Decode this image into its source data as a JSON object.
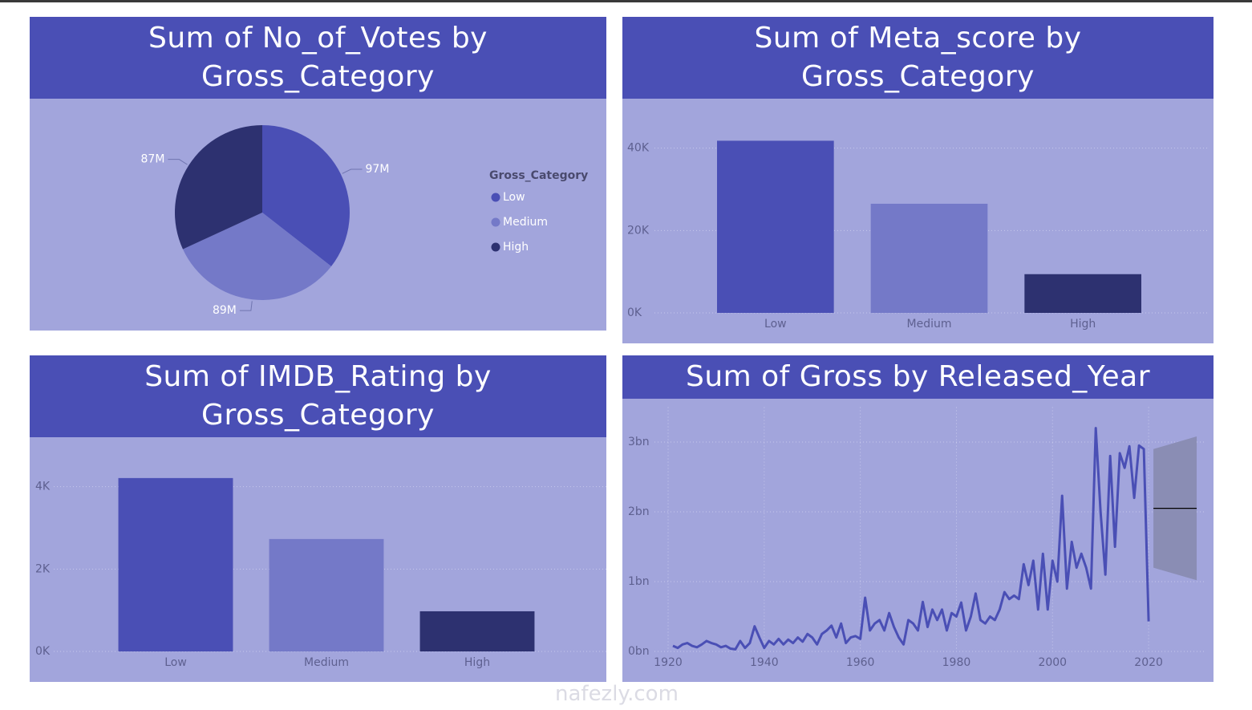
{
  "chart_data": [
    {
      "type": "pie",
      "title": "Sum of No_of_Votes by Gross_Category",
      "legend_title": "Gross_Category",
      "categories": [
        "Low",
        "Medium",
        "High"
      ],
      "values": [
        97,
        89,
        87
      ],
      "value_labels": [
        "97M",
        "89M",
        "87M"
      ],
      "colors": [
        "#4a4fb5",
        "#7479c8",
        "#2d3170"
      ]
    },
    {
      "type": "bar",
      "title": "Sum of Meta_score by Gross_Category",
      "categories": [
        "Low",
        "Medium",
        "High"
      ],
      "values": [
        41800,
        26500,
        9400
      ],
      "colors": [
        "#4a4fb5",
        "#7479c8",
        "#2d3170"
      ],
      "ylim": [
        0,
        45000
      ],
      "yticks": [
        {
          "value": 0,
          "label": "0K"
        },
        {
          "value": 20000,
          "label": "20K"
        },
        {
          "value": 40000,
          "label": "40K"
        }
      ],
      "grid": true
    },
    {
      "type": "bar",
      "title": "Sum of IMDB_Rating by Gross_Category",
      "categories": [
        "Low",
        "Medium",
        "High"
      ],
      "values": [
        4210,
        2730,
        975
      ],
      "colors": [
        "#4a4fb5",
        "#7479c8",
        "#2d3170"
      ],
      "ylim": [
        0,
        4500
      ],
      "yticks": [
        {
          "value": 0,
          "label": "0K"
        },
        {
          "value": 2000,
          "label": "2K"
        },
        {
          "value": 4000,
          "label": "4K"
        }
      ],
      "grid": true
    },
    {
      "type": "line",
      "title": "Sum of Gross by Released_Year",
      "color": "#4a4fb5",
      "x": [
        1921,
        1922,
        1923,
        1924,
        1925,
        1926,
        1927,
        1928,
        1929,
        1930,
        1931,
        1932,
        1933,
        1934,
        1935,
        1936,
        1937,
        1938,
        1939,
        1940,
        1941,
        1942,
        1943,
        1944,
        1945,
        1946,
        1947,
        1948,
        1949,
        1950,
        1951,
        1952,
        1953,
        1954,
        1955,
        1956,
        1957,
        1958,
        1959,
        1960,
        1961,
        1962,
        1963,
        1964,
        1965,
        1966,
        1967,
        1968,
        1969,
        1970,
        1971,
        1972,
        1973,
        1974,
        1975,
        1976,
        1977,
        1978,
        1979,
        1980,
        1981,
        1982,
        1983,
        1984,
        1985,
        1986,
        1987,
        1988,
        1989,
        1990,
        1991,
        1992,
        1993,
        1994,
        1995,
        1996,
        1997,
        1998,
        1999,
        2000,
        2001,
        2002,
        2003,
        2004,
        2005,
        2006,
        2007,
        2008,
        2009,
        2010,
        2011,
        2012,
        2013,
        2014,
        2015,
        2016,
        2017,
        2018,
        2019,
        2020
      ],
      "values": [
        0.08,
        0.05,
        0.1,
        0.12,
        0.08,
        0.06,
        0.1,
        0.15,
        0.12,
        0.1,
        0.06,
        0.08,
        0.04,
        0.03,
        0.15,
        0.05,
        0.12,
        0.36,
        0.2,
        0.05,
        0.15,
        0.1,
        0.18,
        0.1,
        0.17,
        0.12,
        0.2,
        0.14,
        0.25,
        0.2,
        0.1,
        0.25,
        0.3,
        0.37,
        0.2,
        0.4,
        0.12,
        0.2,
        0.22,
        0.18,
        0.77,
        0.3,
        0.4,
        0.45,
        0.3,
        0.55,
        0.35,
        0.2,
        0.1,
        0.45,
        0.4,
        0.3,
        0.71,
        0.35,
        0.6,
        0.45,
        0.6,
        0.3,
        0.55,
        0.5,
        0.7,
        0.3,
        0.5,
        0.83,
        0.45,
        0.4,
        0.5,
        0.45,
        0.6,
        0.85,
        0.75,
        0.8,
        0.75,
        1.25,
        0.95,
        1.3,
        0.6,
        1.4,
        0.6,
        1.3,
        1.0,
        2.23,
        0.9,
        1.57,
        1.2,
        1.4,
        1.2,
        0.9,
        3.2,
        2.0,
        1.1,
        2.8,
        1.5,
        2.84,
        2.63,
        2.94,
        2.2,
        2.95,
        2.9,
        0.43
      ],
      "xlim": [
        1920,
        2032
      ],
      "xticks": [
        1920,
        1940,
        1960,
        1980,
        2000,
        2020
      ],
      "ylim": [
        0,
        3.5
      ],
      "yticks": [
        {
          "value": 0,
          "label": "0bn"
        },
        {
          "value": 1,
          "label": "1bn"
        },
        {
          "value": 2,
          "label": "2bn"
        },
        {
          "value": 3,
          "label": "3bn"
        }
      ],
      "grid": true,
      "forecast": {
        "x": [
          2021,
          2030
        ],
        "values": [
          2.05,
          2.05
        ],
        "upper": [
          2.9,
          3.08
        ],
        "lower": [
          1.2,
          1.02
        ],
        "color": "#000000",
        "band_color": "#8a8db4"
      }
    }
  ],
  "watermark": "nafezly.com"
}
